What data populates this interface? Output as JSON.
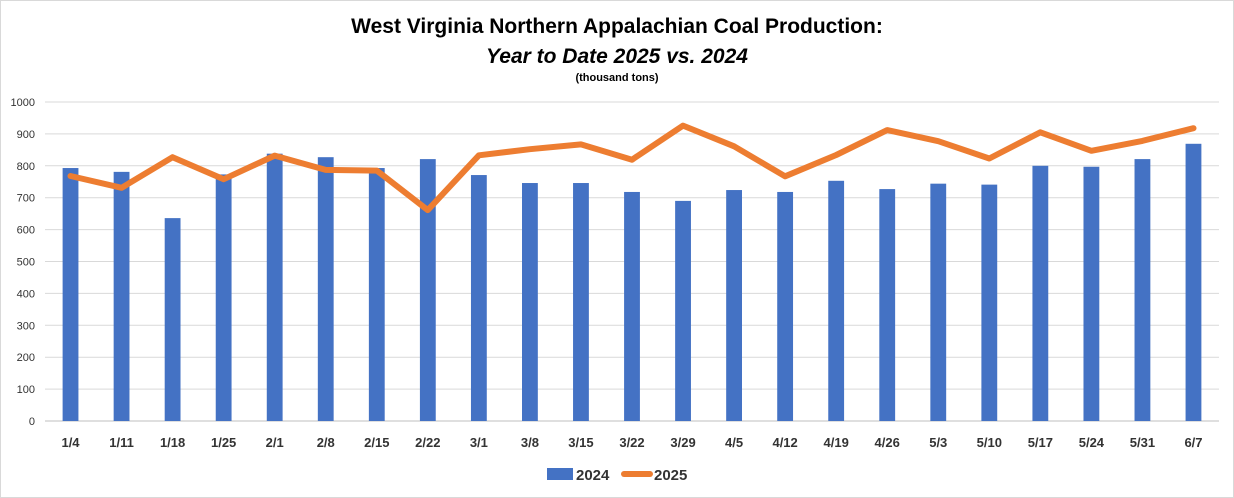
{
  "chart_data": {
    "type": "bar",
    "title": "West Virginia Northern Appalachian Coal Production:",
    "subtitle": "Year to Date 2025 vs. 2024",
    "units_note": "(thousand tons)",
    "categories": [
      "1/4",
      "1/11",
      "1/18",
      "1/25",
      "2/1",
      "2/8",
      "2/15",
      "2/22",
      "3/1",
      "3/8",
      "3/15",
      "3/22",
      "3/29",
      "4/5",
      "4/12",
      "4/19",
      "4/26",
      "5/3",
      "5/10",
      "5/17",
      "5/24",
      "5/31",
      "6/7"
    ],
    "ylim": [
      0,
      1000
    ],
    "yticks": [
      0,
      100,
      200,
      300,
      400,
      500,
      600,
      700,
      800,
      900,
      1000
    ],
    "grid": true,
    "legend_position": "bottom",
    "series": [
      {
        "name": "2024",
        "type": "bar",
        "color": "#4472c4",
        "values": [
          793,
          781,
          636,
          773,
          838,
          827,
          793,
          821,
          771,
          746,
          746,
          718,
          690,
          724,
          718,
          753,
          727,
          744,
          741,
          800,
          797,
          821,
          869
        ]
      },
      {
        "name": "2025",
        "type": "line",
        "color": "#ed7d31",
        "values": [
          768,
          731,
          827,
          758,
          832,
          787,
          785,
          661,
          833,
          852,
          867,
          819,
          926,
          861,
          767,
          834,
          912,
          877,
          823,
          905,
          847,
          878,
          918
        ]
      }
    ]
  }
}
